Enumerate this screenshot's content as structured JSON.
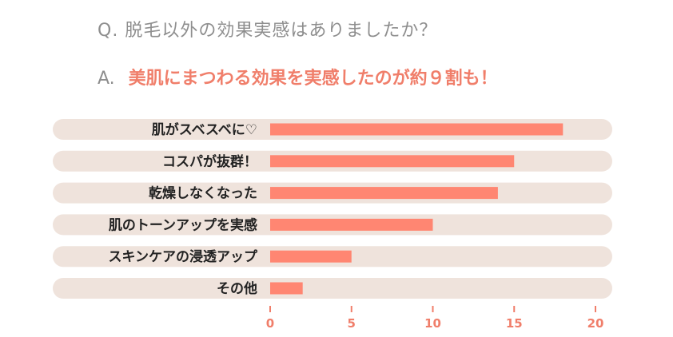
{
  "question": {
    "prefix": "Q.",
    "text": "脱毛以外の効果実感はありましたか？"
  },
  "answer": {
    "prefix": "A.",
    "text": "美肌にまつわる効果を実感したのが約９割も！"
  },
  "colors": {
    "bar": "#ff8672",
    "track": "#efe3dc",
    "tick": "#f07e6a",
    "question": "#8e8e8e"
  },
  "chart_data": {
    "type": "bar",
    "orientation": "horizontal",
    "categories": [
      "肌がスベスベに♡",
      "コスパが抜群！",
      "乾燥しなくなった",
      "肌のトーンアップを実感",
      "スキンケアの浸透アップ",
      "その他"
    ],
    "values": [
      18,
      15,
      14,
      10,
      5,
      2
    ],
    "xlim": [
      0,
      20
    ],
    "xticks": [
      0,
      5,
      10,
      15,
      20
    ],
    "grid": false,
    "legend": "none"
  }
}
